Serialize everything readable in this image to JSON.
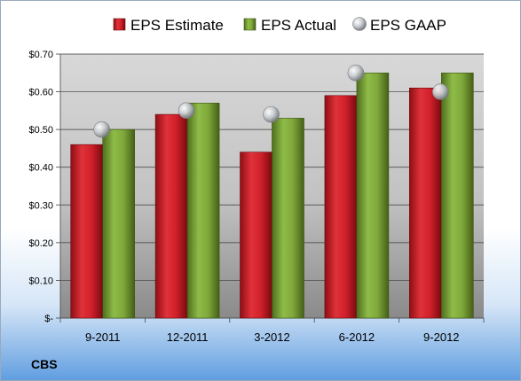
{
  "chart_data": {
    "type": "bar",
    "categories": [
      "9-2011",
      "12-2011",
      "3-2012",
      "6-2012",
      "9-2012"
    ],
    "series": [
      {
        "name": "EPS Estimate",
        "kind": "bar",
        "color": "#d0202a",
        "values": [
          0.46,
          0.54,
          0.44,
          0.59,
          0.61
        ]
      },
      {
        "name": "EPS Actual",
        "kind": "bar",
        "color": "#7fa83a",
        "values": [
          0.5,
          0.57,
          0.53,
          0.65,
          0.65
        ]
      },
      {
        "name": "EPS GAAP",
        "kind": "scatter",
        "color": "#b8bcc0",
        "values": [
          0.5,
          0.55,
          0.54,
          0.65,
          0.6
        ]
      }
    ],
    "yticks": [
      "$-",
      "$0.10",
      "$0.20",
      "$0.30",
      "$0.40",
      "$0.50",
      "$0.60",
      "$0.70"
    ],
    "ylim": [
      0,
      0.7
    ],
    "grid": true,
    "legend_position": "top"
  },
  "footer_label": "CBS"
}
